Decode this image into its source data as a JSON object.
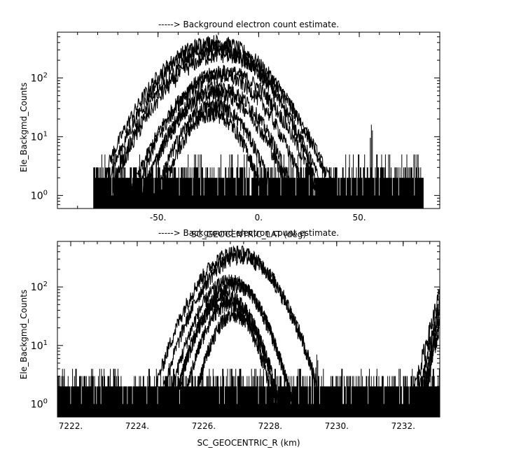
{
  "chart_data": [
    {
      "type": "line",
      "title": "-----> Background electron count estimate.",
      "xlabel": "SC_GEOCENTRIC_LAT (deg)",
      "ylabel": "Ele_Backgmd_Counts",
      "x_scale": "linear",
      "y_scale": "log",
      "xlim": [
        -100,
        90
      ],
      "ylim": [
        0.6,
        600
      ],
      "xticks": [
        {
          "value": -50,
          "label": "-50."
        },
        {
          "value": 0,
          "label": "0."
        },
        {
          "value": 50,
          "label": "50."
        }
      ],
      "yticks": [
        {
          "value": 1,
          "base": "10",
          "exp": "0"
        },
        {
          "value": 10,
          "base": "10",
          "exp": "1"
        },
        {
          "value": 100,
          "base": "10",
          "exp": "2"
        }
      ],
      "grid": false,
      "noise": {
        "x_range": [
          -82,
          82
        ],
        "baseline_max": 3,
        "spikes_max": 5
      },
      "spikes": [
        {
          "x": -72,
          "y": 7
        },
        {
          "x": 56,
          "y": 16
        }
      ],
      "series": [
        {
          "center": -22,
          "peak": 420,
          "width": 17
        },
        {
          "center": -23,
          "peak": 350,
          "width": 16
        },
        {
          "center": -21,
          "peak": 300,
          "width": 16
        },
        {
          "center": -18,
          "peak": 250,
          "width": 17
        },
        {
          "center": -17,
          "peak": 130,
          "width": 15
        },
        {
          "center": -19,
          "peak": 110,
          "width": 14
        },
        {
          "center": -20,
          "peak": 70,
          "width": 13
        },
        {
          "center": -21,
          "peak": 55,
          "width": 13
        },
        {
          "center": -22,
          "peak": 35,
          "width": 11
        },
        {
          "center": -23,
          "peak": 25,
          "width": 10
        }
      ]
    },
    {
      "type": "line",
      "title": "-----> Background electron count estimate.",
      "xlabel": "SC_GEOCENTRIC_R (km)",
      "ylabel": "Ele_Backgmd_Counts",
      "x_scale": "linear",
      "y_scale": "log",
      "xlim": [
        7221.6,
        7233.1
      ],
      "ylim": [
        0.6,
        600
      ],
      "xticks": [
        {
          "value": 7222,
          "label": "7222."
        },
        {
          "value": 7224,
          "label": "7224."
        },
        {
          "value": 7226,
          "label": "7226."
        },
        {
          "value": 7228,
          "label": "7228."
        },
        {
          "value": 7230,
          "label": "7230."
        },
        {
          "value": 7232,
          "label": "7232."
        }
      ],
      "yticks": [
        {
          "value": 1,
          "base": "10",
          "exp": "0"
        },
        {
          "value": 10,
          "base": "10",
          "exp": "1"
        },
        {
          "value": 100,
          "base": "10",
          "exp": "2"
        }
      ],
      "grid": false,
      "noise": {
        "x_range": [
          7221.6,
          7233.1
        ],
        "baseline_max": 3,
        "spikes_max": 4
      },
      "spikes": [
        {
          "x": 7229.4,
          "y": 7
        }
      ],
      "series": [
        {
          "center": 7227.0,
          "peak": 400,
          "width": 0.75
        },
        {
          "center": 7227.1,
          "peak": 330,
          "width": 0.72
        },
        {
          "center": 7226.8,
          "peak": 130,
          "width": 0.6
        },
        {
          "center": 7226.9,
          "peak": 110,
          "width": 0.58
        },
        {
          "center": 7226.7,
          "peak": 70,
          "width": 0.55
        },
        {
          "center": 7226.8,
          "peak": 55,
          "width": 0.5
        },
        {
          "center": 7226.9,
          "peak": 35,
          "width": 0.45
        }
      ],
      "rise": [
        {
          "x_start": 7232.2,
          "y_end": 80
        },
        {
          "x_start": 7232.4,
          "y_end": 55
        },
        {
          "x_start": 7232.5,
          "y_end": 35
        },
        {
          "x_start": 7232.6,
          "y_end": 25
        }
      ]
    }
  ]
}
